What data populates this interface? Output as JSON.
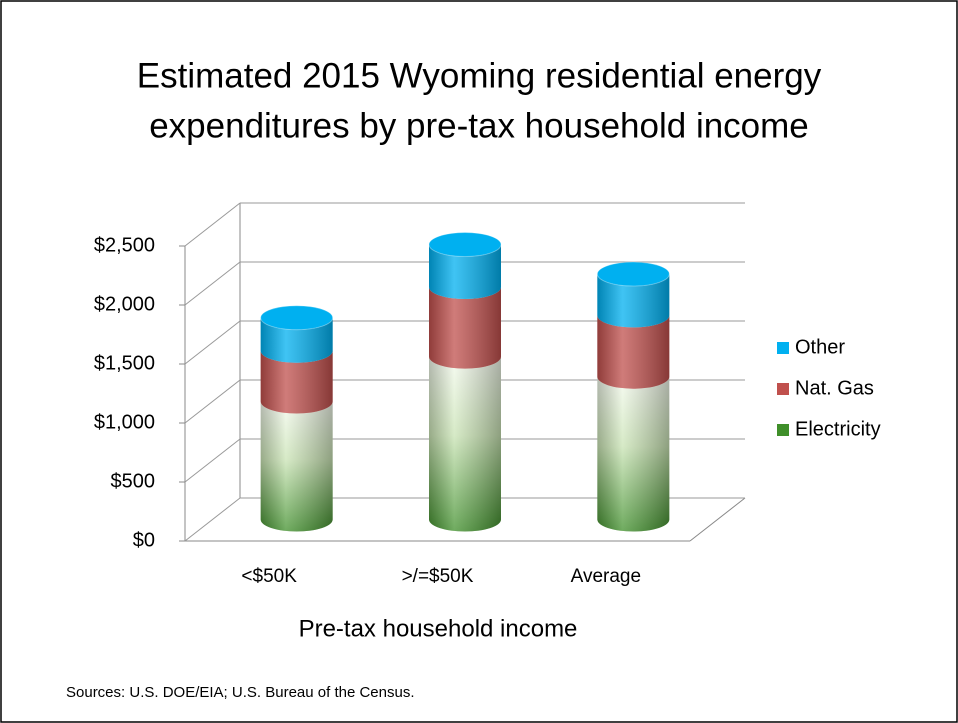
{
  "chart_data": {
    "type": "bar3d-stacked-cylinder",
    "title": [
      "Estimated 2015 Wyoming residential energy",
      "expenditures by pre-tax household income"
    ],
    "xlabel": "Pre-tax household income",
    "categories": [
      "<$50K",
      ">/=$50K",
      "Average"
    ],
    "series": [
      {
        "name": "Electricity",
        "color": "#3f8f2a",
        "values": [
          1000,
          1380,
          1210
        ]
      },
      {
        "name": "Nat. Gas",
        "color": "#c0504d",
        "values": [
          430,
          590,
          520
        ]
      },
      {
        "name": "Other",
        "color": "#00b0f0",
        "values": [
          280,
          360,
          350
        ]
      }
    ],
    "ylim": [
      0,
      2500
    ],
    "yticks": [
      {
        "value": 0,
        "label": "$0"
      },
      {
        "value": 500,
        "label": "$500"
      },
      {
        "value": 1000,
        "label": "$1,000"
      },
      {
        "value": 1500,
        "label": "$1,500"
      },
      {
        "value": 2000,
        "label": "$2,000"
      },
      {
        "value": 2500,
        "label": "$2,500"
      }
    ],
    "grid": true,
    "legend": "right",
    "note": "Sources: U.S. DOE/EIA; U.S. Bureau of the Census."
  }
}
